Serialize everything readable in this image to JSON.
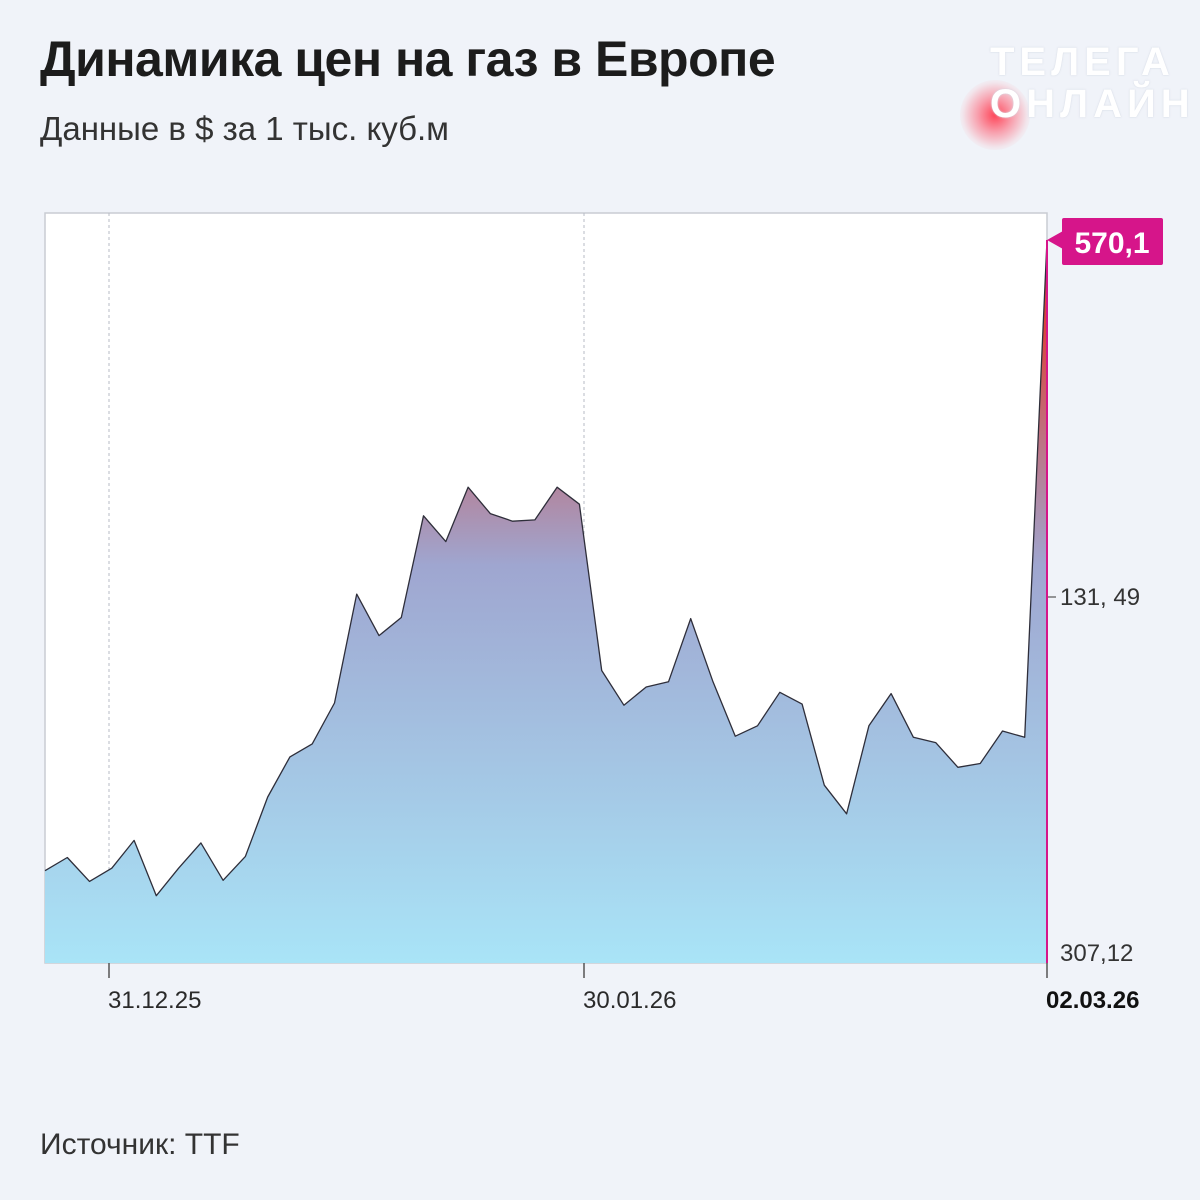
{
  "title": "Динамика цен на газ в Европе",
  "subtitle": "Данные в $ за 1 тыс. куб.м",
  "source": "Источник: TTF",
  "logo": {
    "line1": "ТЕЛЕГА",
    "line2": "ОНЛАЙН"
  },
  "colors": {
    "background": "#f0f3f9",
    "badge": "#d6158a",
    "area_top": "#d8453c",
    "area_bottom": "#a9e4f7"
  },
  "chart_data": {
    "type": "area",
    "x_tick_labels": [
      "31.12.25",
      "30.01.26",
      "02.03.26"
    ],
    "y_tick_labels": [
      "131, 49",
      "307,12"
    ],
    "last_value_label": "570,1",
    "ylim": [
      307.12,
      570.1
    ],
    "values": [
      340.7,
      345.5,
      336.8,
      341.6,
      351.7,
      331.6,
      341.6,
      350.8,
      337.2,
      345.9,
      367.5,
      382.1,
      386.8,
      401.7,
      441.3,
      426.2,
      432.8,
      469.8,
      460.4,
      480.2,
      470.6,
      467.8,
      468.3,
      480.2,
      474.0,
      413.5,
      400.9,
      407.5,
      409.4,
      432.4,
      409.4,
      389.6,
      393.4,
      405.6,
      401.3,
      371.8,
      361.4,
      393.4,
      405.1,
      389.2,
      387.3,
      378.3,
      379.7,
      391.5,
      389.2,
      570.1
    ],
    "grid": "vertical-dashed"
  }
}
